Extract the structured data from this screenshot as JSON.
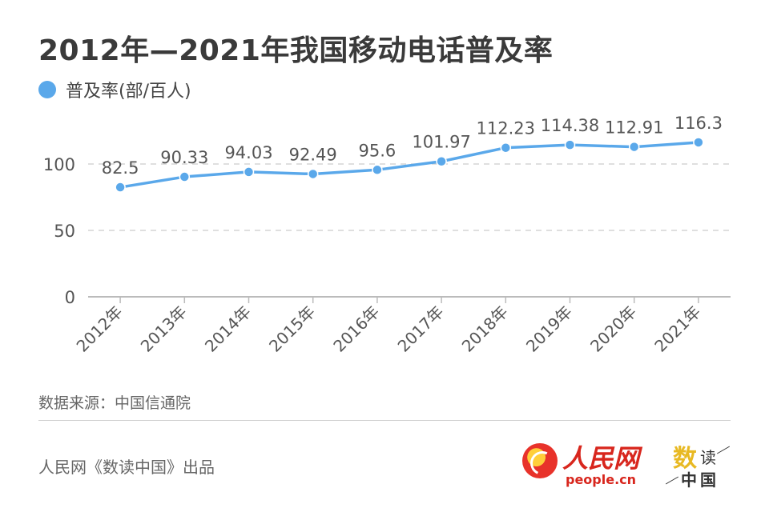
{
  "title": "2012年—2021年我国移动电话普及率",
  "legend": {
    "label": "普及率(部/百人)",
    "color": "#5aa8ea"
  },
  "chart_data": {
    "type": "line",
    "categories": [
      "2012年",
      "2013年",
      "2014年",
      "2015年",
      "2016年",
      "2017年",
      "2018年",
      "2019年",
      "2020年",
      "2021年"
    ],
    "series": [
      {
        "name": "普及率(部/百人)",
        "values": [
          82.5,
          90.33,
          94.03,
          92.49,
          95.6,
          101.97,
          112.23,
          114.38,
          112.91,
          116.3
        ]
      }
    ],
    "data_labels": [
      "82.5",
      "90.33",
      "94.03",
      "92.49",
      "95.6",
      "101.97",
      "112.23",
      "114.38",
      "112.91",
      "116.3"
    ],
    "yticks": [
      0,
      50,
      100
    ],
    "ylim": [
      0,
      125
    ],
    "grid": true,
    "legend_position": "top-left",
    "line_color": "#5aa8ea"
  },
  "source": "数据来源：中国信通院",
  "footer": "人民网《数读中国》出品",
  "logo_people": {
    "cn": "人民网",
    "en": "people.cn"
  },
  "logo_shuzi": {
    "a": "数",
    "b": "读",
    "c": "中国"
  }
}
